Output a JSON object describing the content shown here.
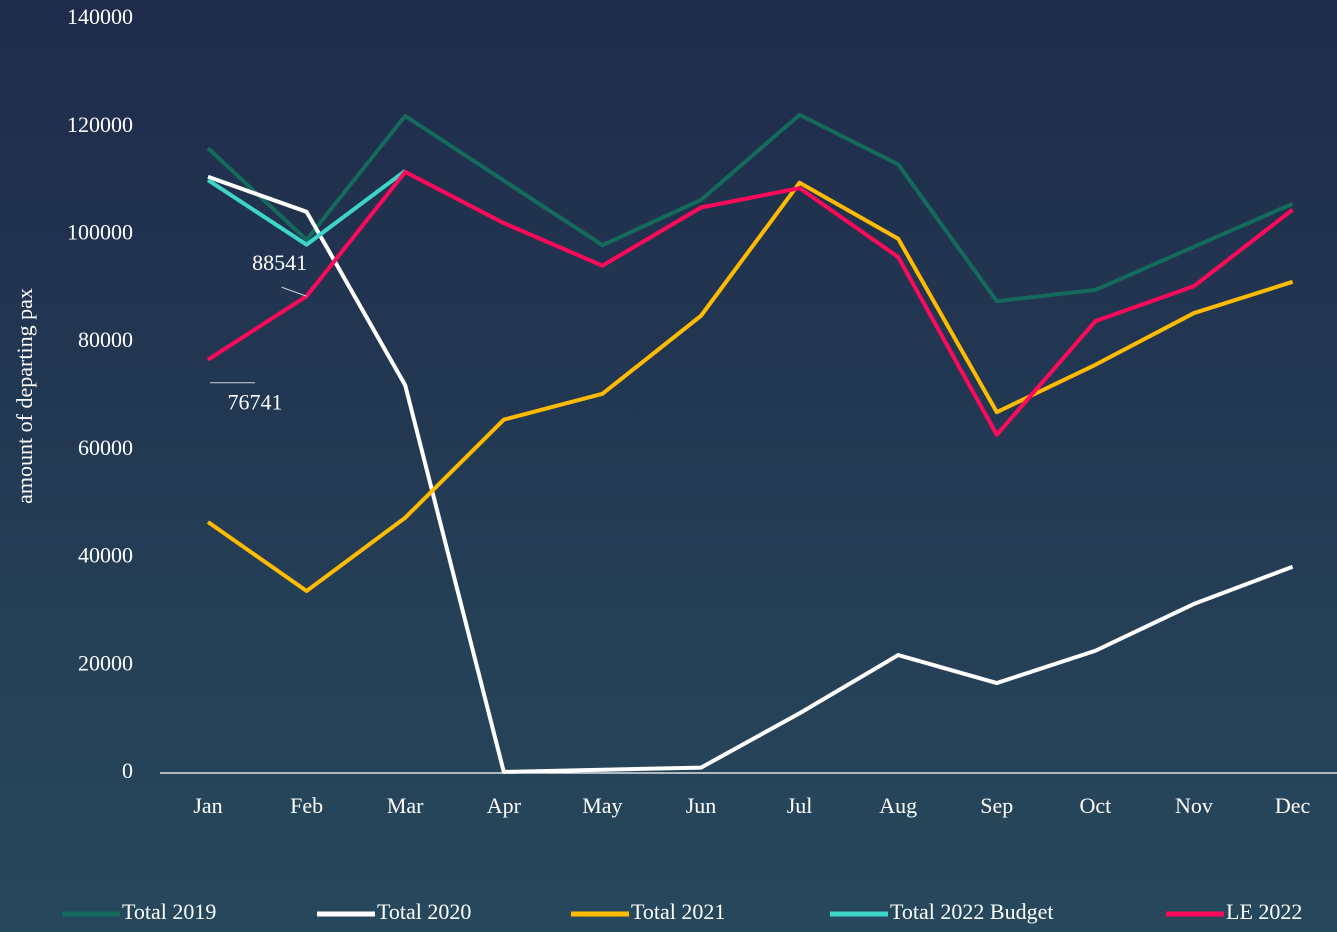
{
  "chart_data": {
    "type": "line",
    "y_label": "amount of departing pax",
    "categories": [
      "Jan",
      "Feb",
      "Mar",
      "Apr",
      "May",
      "Jun",
      "Jul",
      "Aug",
      "Sep",
      "Oct",
      "Nov",
      "Dec"
    ],
    "ylim": [
      0,
      140000
    ],
    "yticks": [
      0,
      20000,
      40000,
      60000,
      80000,
      100000,
      120000,
      140000
    ],
    "grid": false,
    "legend": "bottom",
    "series": [
      {
        "name": "Total 2019",
        "color": "#146a5c",
        "values": [
          116000,
          99000,
          122000,
          110000,
          98000,
          106400,
          122200,
          113000,
          87600,
          89700,
          97700,
          105700
        ]
      },
      {
        "name": "Total 2020",
        "color": "#ffffff",
        "values": [
          110700,
          104200,
          72000,
          200,
          600,
          1000,
          11100,
          21900,
          16700,
          22700,
          31400,
          38300
        ]
      },
      {
        "name": "Total 2021",
        "color": "#ffbb00",
        "values": [
          46600,
          33800,
          47400,
          65600,
          70400,
          84900,
          109600,
          99200,
          67000,
          75800,
          85400,
          91200
        ]
      },
      {
        "name": "Total 2022 Budget",
        "color": "#3dd6c6",
        "values": [
          110100,
          98100,
          111800,
          null,
          null,
          null,
          null,
          null,
          null,
          null,
          null,
          null
        ]
      },
      {
        "name": "LE 2022",
        "color": "#ff0a5a",
        "values": [
          76741,
          88541,
          111600,
          102100,
          94200,
          105000,
          108600,
          95800,
          62800,
          83900,
          90400,
          104600
        ],
        "labeled_points": [
          0,
          1
        ]
      }
    ]
  }
}
